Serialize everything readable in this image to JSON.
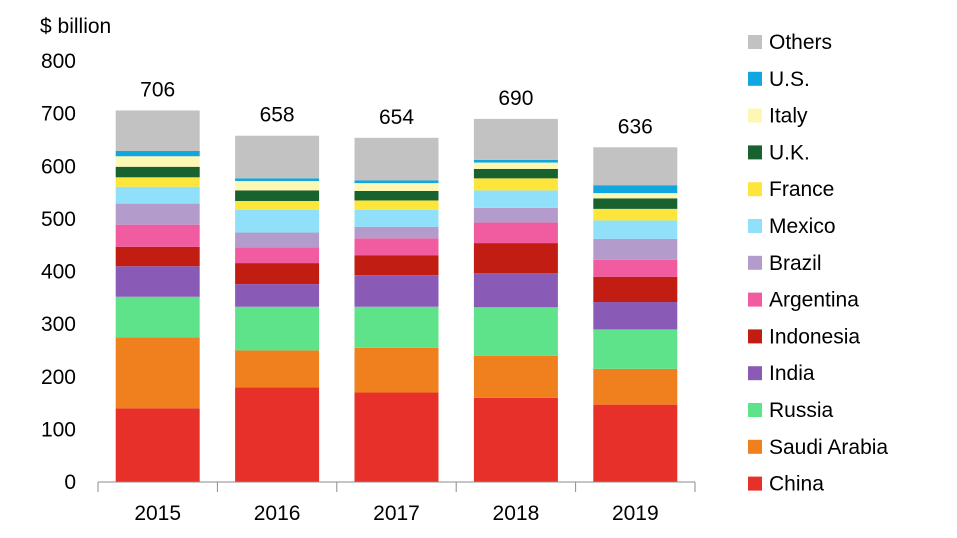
{
  "chart_data": {
    "type": "bar",
    "stacked": true,
    "ylabel": "$ billion",
    "ylim": [
      0,
      800
    ],
    "yticks": [
      0,
      100,
      200,
      300,
      400,
      500,
      600,
      700,
      800
    ],
    "categories": [
      "2015",
      "2016",
      "2017",
      "2018",
      "2019"
    ],
    "totals": [
      706,
      658,
      654,
      690,
      636
    ],
    "legend_position": "right",
    "series": [
      {
        "name": "China",
        "color": "#e8302a",
        "values": [
          140,
          180,
          170,
          160,
          147
        ]
      },
      {
        "name": "Saudi Arabia",
        "color": "#f07f1d",
        "values": [
          135,
          70,
          85,
          80,
          68
        ]
      },
      {
        "name": "Russia",
        "color": "#5fe38a",
        "values": [
          77,
          83,
          78,
          92,
          75
        ]
      },
      {
        "name": "India",
        "color": "#8a5bb6",
        "values": [
          58,
          43,
          60,
          65,
          52
        ]
      },
      {
        "name": "Indonesia",
        "color": "#c21d12",
        "values": [
          37,
          40,
          38,
          57,
          48
        ]
      },
      {
        "name": "Argentina",
        "color": "#f05c9f",
        "values": [
          42,
          30,
          32,
          39,
          32
        ]
      },
      {
        "name": "Brazil",
        "color": "#b39ccc",
        "values": [
          40,
          28,
          22,
          28,
          40
        ]
      },
      {
        "name": "Mexico",
        "color": "#8fe0f8",
        "values": [
          32,
          43,
          32,
          33,
          35
        ]
      },
      {
        "name": "France",
        "color": "#fde53c",
        "values": [
          18,
          17,
          18,
          23,
          22
        ]
      },
      {
        "name": "U.K.",
        "color": "#17622e",
        "values": [
          20,
          20,
          18,
          18,
          20
        ]
      },
      {
        "name": "Italy",
        "color": "#fdf7b4",
        "values": [
          20,
          18,
          15,
          12,
          10
        ]
      },
      {
        "name": "U.S.",
        "color": "#10a6df",
        "values": [
          10,
          5,
          5,
          5,
          15
        ]
      },
      {
        "name": "Others",
        "color": "#c2c2c2",
        "values": [
          77,
          81,
          81,
          78,
          72
        ]
      }
    ]
  }
}
